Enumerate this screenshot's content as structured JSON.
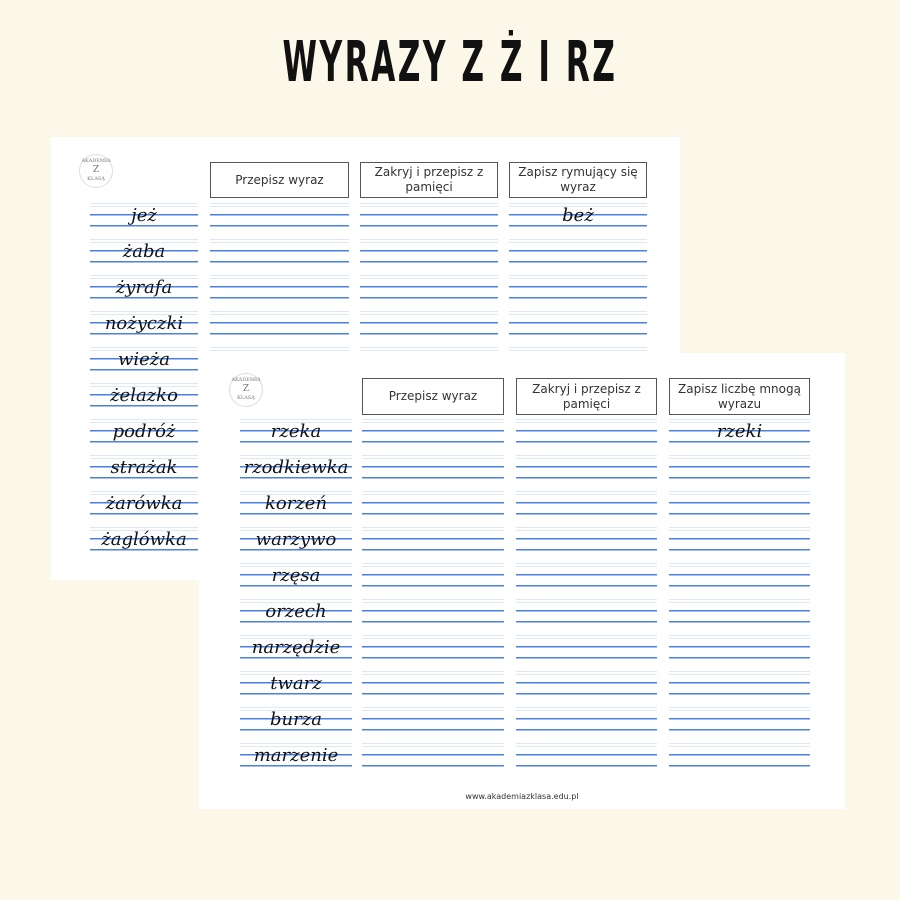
{
  "title": "WYRAZY Z Ż I RZ",
  "logo": {
    "line1": "AKADEMIA",
    "line2": "Z",
    "line3": "KLASĄ"
  },
  "sheet1": {
    "headers": [
      "Przepisz wyraz",
      "Zakryj i przepisz z pamięci",
      "Zapisz rymujący się wyraz"
    ],
    "words": [
      "jeż",
      "żaba",
      "żyrafa",
      "nożyczki",
      "wieża",
      "żelazko",
      "podróż",
      "strażak",
      "żarówka",
      "żaglówka"
    ],
    "example_answer": "beż"
  },
  "sheet2": {
    "headers": [
      "Przepisz wyraz",
      "Zakryj i przepisz z pamięci",
      "Zapisz liczbę mnogą wyrazu"
    ],
    "words": [
      "rzeka",
      "rzodkiewka",
      "korzeń",
      "warzywo",
      "rzęsa",
      "orzech",
      "narzędzie",
      "twarz",
      "burza",
      "marzenie"
    ],
    "example_answer": "rzeki",
    "footer": "www.akademiazklasa.edu.pl"
  },
  "colors": {
    "background": "#fbf7e9",
    "line_blue": "#4a80e2",
    "line_light": "#dbe7fb"
  }
}
